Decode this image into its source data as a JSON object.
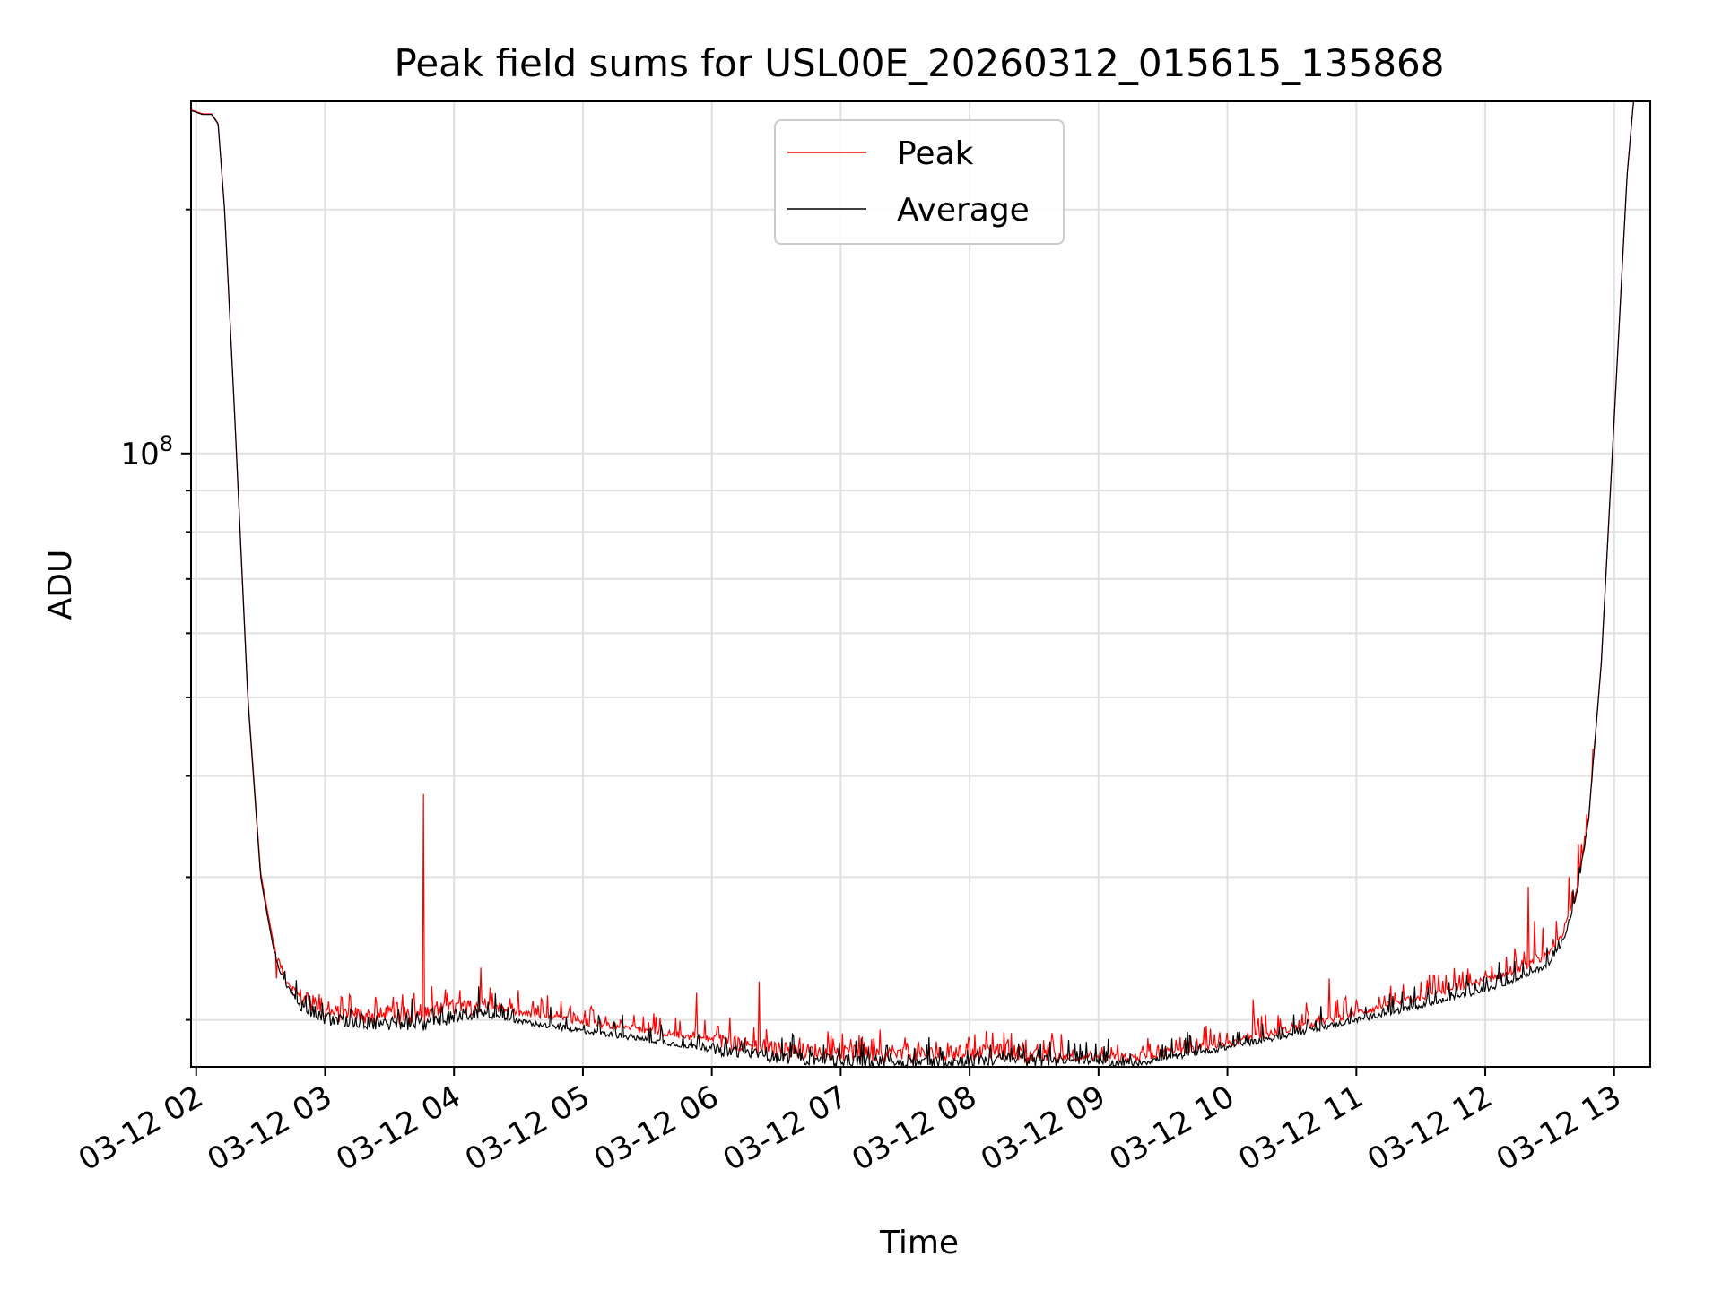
{
  "chart_data": {
    "type": "line",
    "title": "Peak field sums for USL00E_20260312_015615_135868",
    "xlabel": "Time",
    "ylabel": "ADU",
    "yscale": "log",
    "ylim": [
      17500000,
      272000000
    ],
    "xlim_hours": [
      1.96,
      13.28
    ],
    "grid": true,
    "legend": {
      "position": "upper center",
      "entries": [
        "Peak",
        "Average"
      ]
    },
    "x_ticks": [
      {
        "label": "03-12 02",
        "hour": 2
      },
      {
        "label": "03-12 03",
        "hour": 3
      },
      {
        "label": "03-12 04",
        "hour": 4
      },
      {
        "label": "03-12 05",
        "hour": 5
      },
      {
        "label": "03-12 06",
        "hour": 6
      },
      {
        "label": "03-12 07",
        "hour": 7
      },
      {
        "label": "03-12 08",
        "hour": 8
      },
      {
        "label": "03-12 09",
        "hour": 9
      },
      {
        "label": "03-12 10",
        "hour": 10
      },
      {
        "label": "03-12 11",
        "hour": 11
      },
      {
        "label": "03-12 12",
        "hour": 12
      },
      {
        "label": "03-12 13",
        "hour": 13
      }
    ],
    "y_major_ticks": [
      {
        "value": 100000000,
        "base": "10",
        "exp": "8"
      }
    ],
    "y_minor_ticks": [
      20000000,
      30000000,
      40000000,
      50000000,
      60000000,
      70000000,
      80000000,
      90000000,
      200000000
    ],
    "series": [
      {
        "name": "Average",
        "color": "#000000",
        "x_hours": [
          1.96,
          2.05,
          2.12,
          2.17,
          2.22,
          2.3,
          2.4,
          2.5,
          2.55,
          2.6,
          2.65,
          2.7,
          2.8,
          2.9,
          3.0,
          3.2,
          3.5,
          3.8,
          4.0,
          4.2,
          4.5,
          5.0,
          5.5,
          6.0,
          6.5,
          7.0,
          7.5,
          8.0,
          8.3,
          8.5,
          8.8,
          9.0,
          9.3,
          9.5,
          10.0,
          10.5,
          11.0,
          11.5,
          12.0,
          12.3,
          12.5,
          12.6,
          12.7,
          12.8,
          12.9,
          13.0,
          13.1,
          13.15,
          13.28
        ],
        "values": [
          265000000,
          262000000,
          262000000,
          255000000,
          200000000,
          110000000,
          50000000,
          30000000,
          27000000,
          24500000,
          23000000,
          22000000,
          21000000,
          20500000,
          20000000,
          19900000,
          19800000,
          19800000,
          20200000,
          20400000,
          19900000,
          19400000,
          18900000,
          18400000,
          18000000,
          17800000,
          17700000,
          17800000,
          17900000,
          17800000,
          17800000,
          17700000,
          17700000,
          17900000,
          18500000,
          19200000,
          20000000,
          20800000,
          21800000,
          22600000,
          23500000,
          25000000,
          28000000,
          35000000,
          55000000,
          110000000,
          220000000,
          272000000,
          272000000
        ]
      },
      {
        "name": "Peak",
        "color": "#ff0000",
        "x_hours": [
          1.96,
          2.05,
          2.12,
          2.17,
          2.22,
          2.3,
          2.4,
          2.5,
          2.55,
          2.6,
          2.65,
          2.7,
          2.8,
          2.9,
          3.0,
          3.2,
          3.5,
          3.8,
          4.0,
          4.2,
          4.5,
          5.0,
          5.5,
          6.0,
          6.5,
          7.0,
          7.5,
          8.0,
          8.3,
          8.5,
          8.8,
          9.0,
          9.3,
          9.5,
          10.0,
          10.5,
          11.0,
          11.5,
          12.0,
          12.3,
          12.5,
          12.6,
          12.7,
          12.8,
          12.9,
          13.0,
          13.1,
          13.15,
          13.28
        ],
        "values": [
          265500000,
          262500000,
          262500000,
          255500000,
          200500000,
          110500000,
          50500000,
          30400000,
          27400000,
          24900000,
          23400000,
          22400000,
          21400000,
          20900000,
          20400000,
          20300000,
          20200000,
          20300000,
          20700000,
          20900000,
          20400000,
          19900000,
          19400000,
          18900000,
          18400000,
          18200000,
          18100000,
          18200000,
          18300000,
          18000000,
          18000000,
          17900000,
          18000000,
          18200000,
          18700000,
          19500000,
          20400000,
          21300000,
          22400000,
          23200000,
          24100000,
          25600000,
          28500000,
          35300000,
          55200000,
          110200000,
          220300000,
          272000000,
          272000000
        ],
        "spikes": [
          [
            2.62,
            22500000
          ],
          [
            2.97,
            21300000
          ],
          [
            3.1,
            20800000
          ],
          [
            3.4,
            21000000
          ],
          [
            3.6,
            21500000
          ],
          [
            3.76,
            38000000
          ],
          [
            3.83,
            22000000
          ],
          [
            4.06,
            21000000
          ],
          [
            4.21,
            23200000
          ],
          [
            4.35,
            21000000
          ],
          [
            4.6,
            20700000
          ],
          [
            4.8,
            20500000
          ],
          [
            5.03,
            20100000
          ],
          [
            5.3,
            19800000
          ],
          [
            5.6,
            20100000
          ],
          [
            5.88,
            21600000
          ],
          [
            6.1,
            19000000
          ],
          [
            6.37,
            22300000
          ],
          [
            6.8,
            18700000
          ],
          [
            7.1,
            18600000
          ],
          [
            7.4,
            18600000
          ],
          [
            7.6,
            18800000
          ],
          [
            7.85,
            18500000
          ],
          [
            8.15,
            18400000
          ],
          [
            8.5,
            18300000
          ],
          [
            8.8,
            18400000
          ],
          [
            9.1,
            18500000
          ],
          [
            9.4,
            18700000
          ],
          [
            9.6,
            18900000
          ],
          [
            9.9,
            19200000
          ],
          [
            10.2,
            21200000
          ],
          [
            10.5,
            19800000
          ],
          [
            10.79,
            22500000
          ],
          [
            11.0,
            21200000
          ],
          [
            11.3,
            21600000
          ],
          [
            11.5,
            22300000
          ],
          [
            11.8,
            22700000
          ],
          [
            12.0,
            23000000
          ],
          [
            12.2,
            23300000
          ],
          [
            12.33,
            29200000
          ],
          [
            12.38,
            26500000
          ],
          [
            12.45,
            26000000
          ],
          [
            12.55,
            26500000
          ],
          [
            12.65,
            30000000
          ],
          [
            12.72,
            33000000
          ]
        ]
      }
    ]
  }
}
